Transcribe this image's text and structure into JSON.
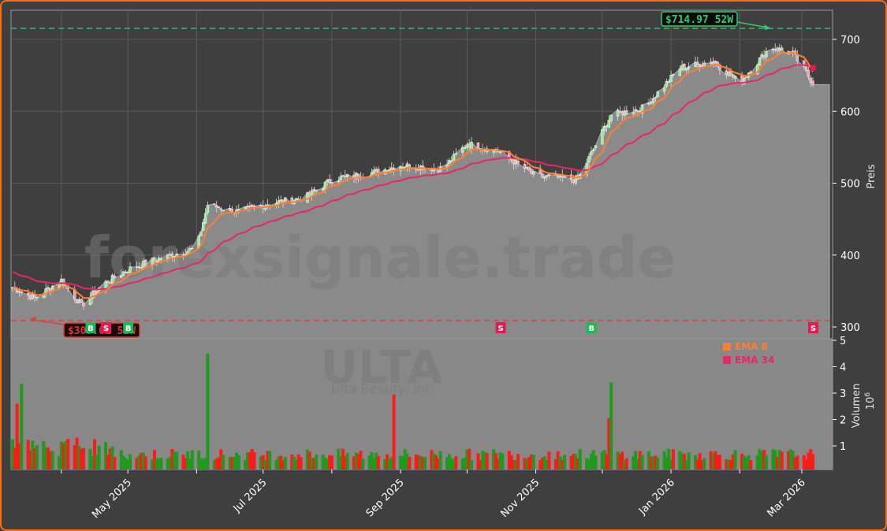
{
  "chart_data": {
    "type": "candlestick+volume",
    "ticker": "ULTA",
    "company": "Ulta Beauty, Inc",
    "watermark": "forexsignale.trade",
    "ylabel": "Preis",
    "ylabel_volume": "Volumen",
    "volume_multiplier_label": "10^6",
    "ylim": [
      285,
      743
    ],
    "yticks": [
      300,
      400,
      500,
      600,
      700
    ],
    "volume_ylim": [
      0,
      5.1
    ],
    "volume_yticks": [
      1,
      2,
      3,
      4,
      5
    ],
    "xtick_labels": [
      "May 2025",
      "Jul 2025",
      "Sep 2025",
      "Nov 2025",
      "Jan 2026",
      "Mar 2026"
    ],
    "high_52w": {
      "value": 714.97,
      "label": "$714.97 52W",
      "color": "#2ecc71"
    },
    "low_52w": {
      "value": 309.01,
      "label": "$309.01 52W",
      "color": "#ff3b3b"
    },
    "legend": [
      {
        "name": "EMA 8",
        "color": "#ff7f32"
      },
      {
        "name": "EMA 34",
        "color": "#e8266a"
      }
    ],
    "signals": [
      {
        "type": "B",
        "date": "2025-04-14",
        "color": "#1db954"
      },
      {
        "type": "S",
        "date": "2025-04-21",
        "color": "#e8194f"
      },
      {
        "type": "B",
        "date": "2025-05-01",
        "color": "#1db954"
      },
      {
        "type": "S",
        "date": "2025-10-16",
        "color": "#e8194f"
      },
      {
        "type": "B",
        "date": "2025-11-26",
        "color": "#1db954"
      },
      {
        "type": "S",
        "date": "2026-03-06",
        "color": "#e8194f"
      }
    ],
    "close_monthly_approx": [
      {
        "date": "2025-03-10",
        "close": 355
      },
      {
        "date": "2025-03-20",
        "close": 340
      },
      {
        "date": "2025-04-01",
        "close": 365
      },
      {
        "date": "2025-04-10",
        "close": 330
      },
      {
        "date": "2025-04-20",
        "close": 360
      },
      {
        "date": "2025-05-01",
        "close": 380
      },
      {
        "date": "2025-05-15",
        "close": 395
      },
      {
        "date": "2025-06-01",
        "close": 410
      },
      {
        "date": "2025-06-06",
        "close": 470
      },
      {
        "date": "2025-06-20",
        "close": 460
      },
      {
        "date": "2025-07-01",
        "close": 470
      },
      {
        "date": "2025-07-20",
        "close": 480
      },
      {
        "date": "2025-08-01",
        "close": 505
      },
      {
        "date": "2025-08-20",
        "close": 515
      },
      {
        "date": "2025-09-01",
        "close": 525
      },
      {
        "date": "2025-09-20",
        "close": 520
      },
      {
        "date": "2025-10-01",
        "close": 555
      },
      {
        "date": "2025-10-15",
        "close": 545
      },
      {
        "date": "2025-11-01",
        "close": 510
      },
      {
        "date": "2025-11-20",
        "close": 505
      },
      {
        "date": "2025-12-05",
        "close": 595
      },
      {
        "date": "2025-12-20",
        "close": 605
      },
      {
        "date": "2026-01-05",
        "close": 660
      },
      {
        "date": "2026-01-20",
        "close": 670
      },
      {
        "date": "2026-02-01",
        "close": 640
      },
      {
        "date": "2026-02-15",
        "close": 690
      },
      {
        "date": "2026-02-25",
        "close": 680
      },
      {
        "date": "2026-03-06",
        "close": 640
      }
    ],
    "volume_spikes_millions": [
      {
        "date": "2025-03-14",
        "value": 3.35,
        "color": "green"
      },
      {
        "date": "2025-03-12",
        "value": 2.6,
        "color": "red"
      },
      {
        "date": "2025-06-06",
        "value": 4.5,
        "color": "green"
      },
      {
        "date": "2025-08-29",
        "value": 2.95,
        "color": "red"
      },
      {
        "date": "2025-12-05",
        "value": 3.4,
        "color": "green"
      },
      {
        "date": "2025-12-04",
        "value": 2.05,
        "color": "red"
      }
    ],
    "grid": true,
    "legend_position": "volume-pane upper right"
  }
}
